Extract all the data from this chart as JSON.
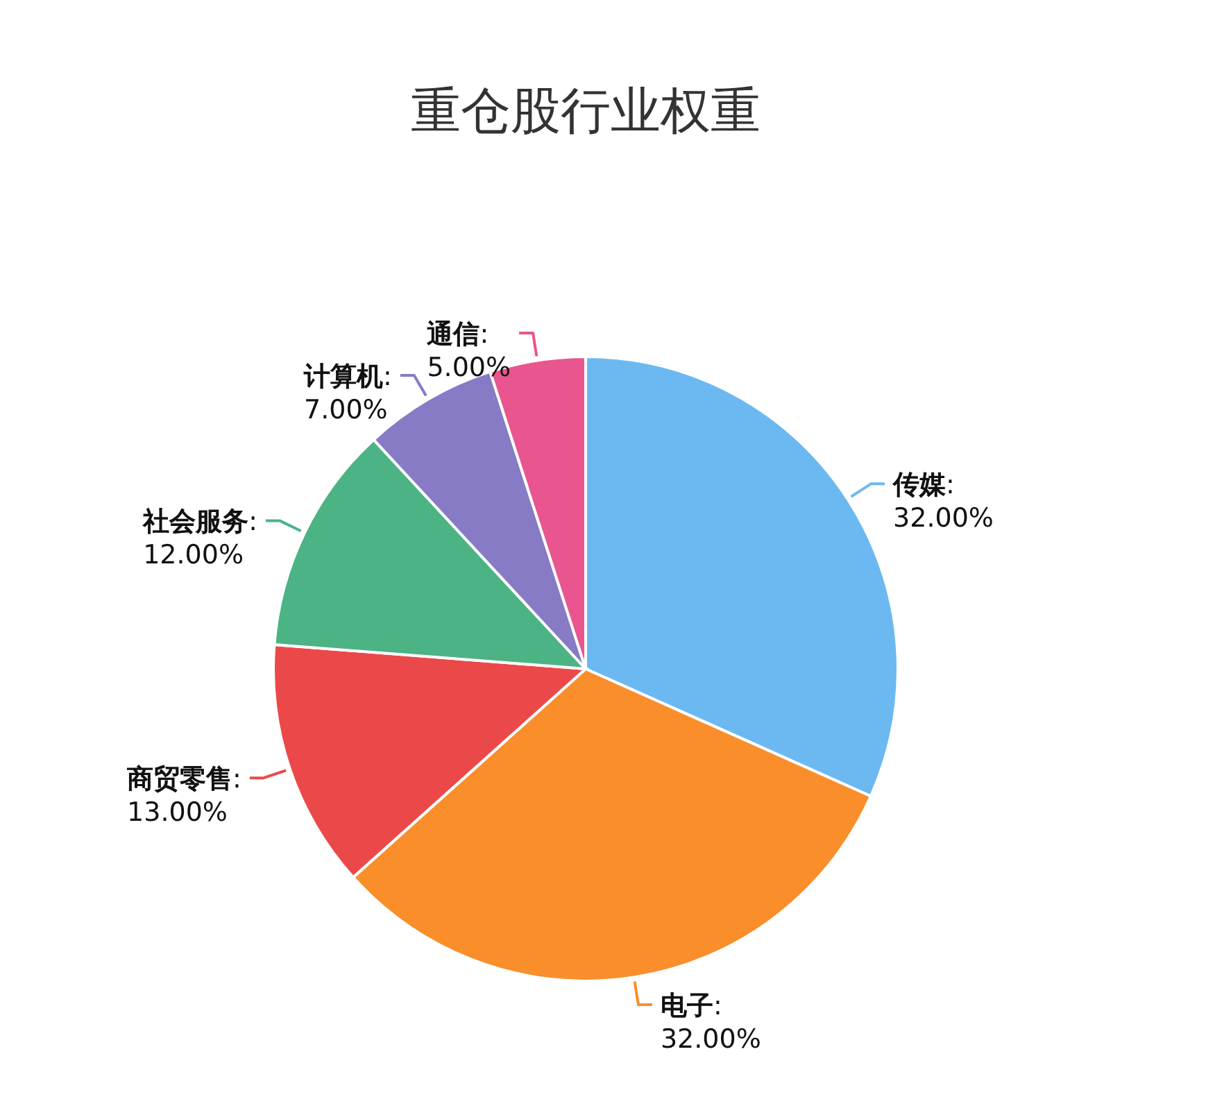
{
  "chart_data": {
    "type": "pie",
    "title": "重仓股行业权重",
    "categories": [
      "传媒",
      "电子",
      "商贸零售",
      "社会服务",
      "计算机",
      "通信"
    ],
    "values": [
      32,
      32,
      13,
      12,
      7,
      5
    ],
    "value_labels": [
      ":\n32.00%",
      ":\n32.00%",
      ":\n13.00%",
      ":\n12.00%",
      ":\n7.00%",
      ":\n5.00%"
    ],
    "colors": [
      "#6cb9f1",
      "#f98e2b",
      "#eb4949",
      "#4bb384",
      "#877bc6",
      "#e9558f"
    ]
  }
}
